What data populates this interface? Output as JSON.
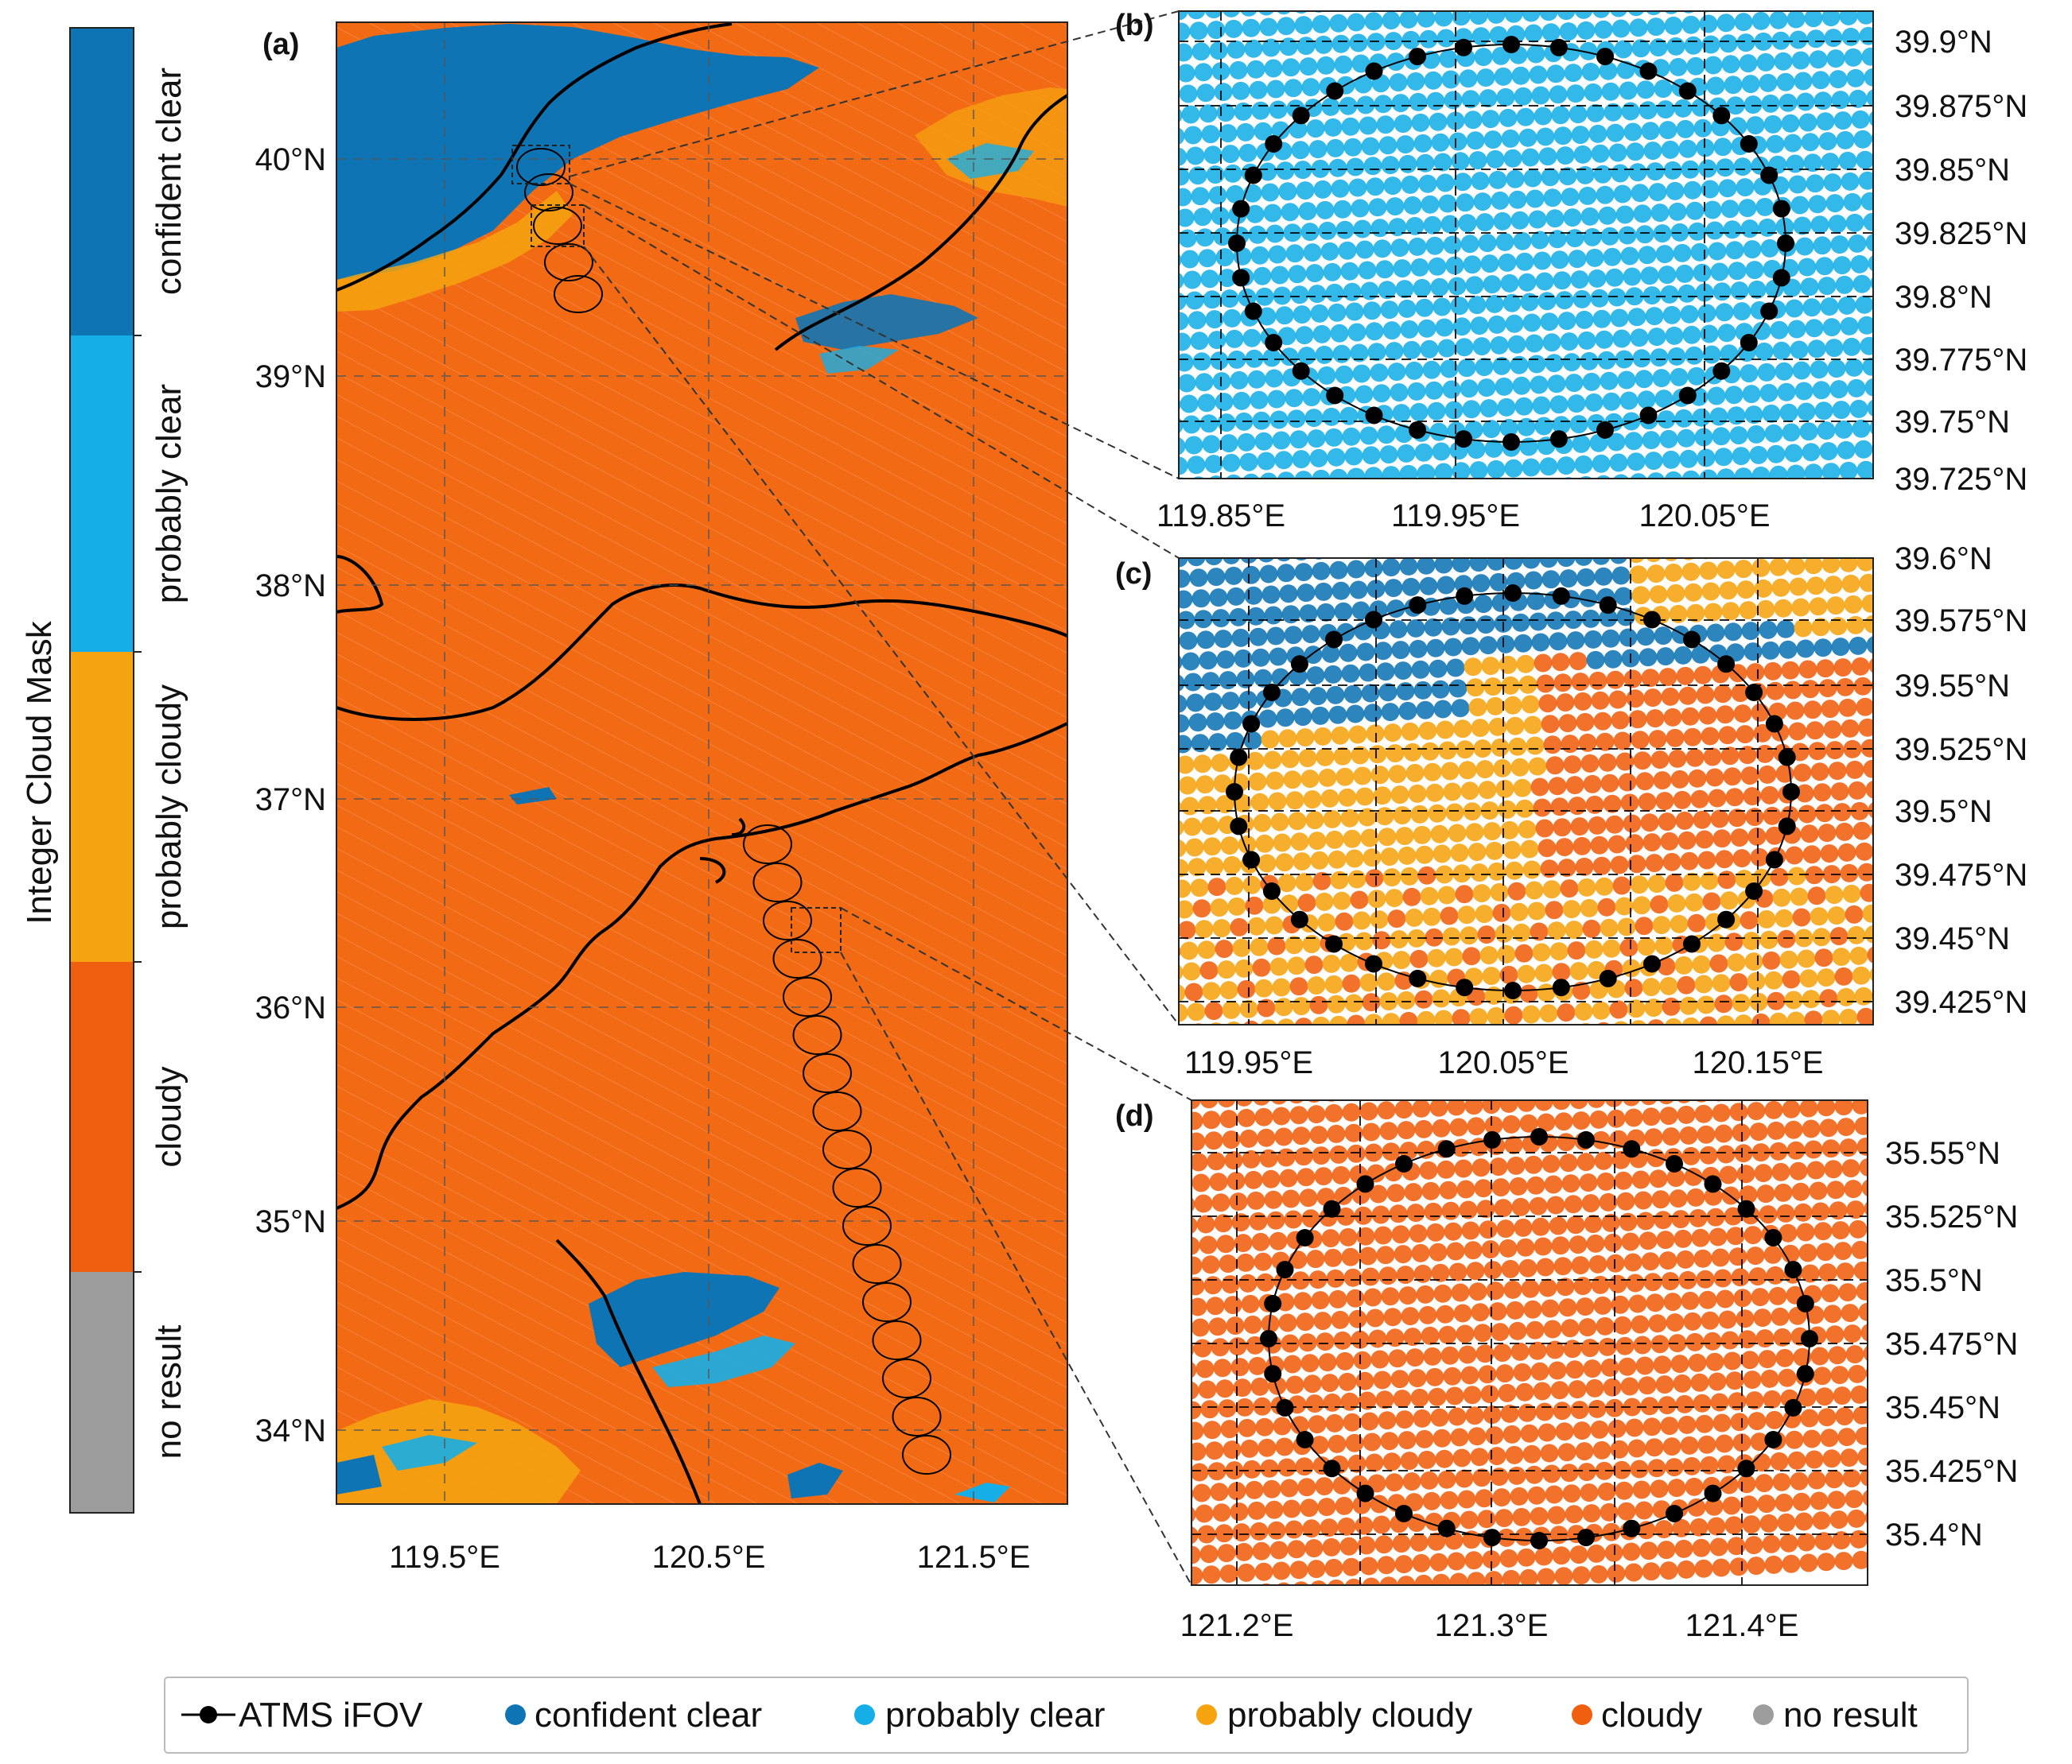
{
  "colors": {
    "confident_clear": "#0f74b4",
    "probably_clear": "#16aee6",
    "probably_cloudy": "#f5a30f",
    "cloudy": "#f05f0f",
    "no_result": "#9d9d9d",
    "atms": "#000000"
  },
  "colorbar": {
    "title": "Integer Cloud Mask",
    "labels": [
      "confident clear",
      "probably clear",
      "probably cloudy",
      "cloudy",
      "no result"
    ]
  },
  "panel_a": {
    "label": "(a)",
    "lat_ticks": [
      "40°N",
      "39°N",
      "38°N",
      "37°N",
      "36°N",
      "35°N",
      "34°N"
    ],
    "lon_ticks": [
      "119.5°E",
      "120.5°E",
      "121.5°E"
    ]
  },
  "panel_b": {
    "label": "(b)",
    "lat_ticks": [
      "39.9°N",
      "39.875°N",
      "39.85°N",
      "39.825°N",
      "39.8°N",
      "39.775°N",
      "39.75°N",
      "39.725°N"
    ],
    "lon_ticks": [
      "119.85°E",
      "119.95°E",
      "120.05°E"
    ]
  },
  "panel_c": {
    "label": "(c)",
    "lat_ticks": [
      "39.6°N",
      "39.575°N",
      "39.55°N",
      "39.525°N",
      "39.5°N",
      "39.475°N",
      "39.45°N",
      "39.425°N"
    ],
    "lon_ticks": [
      "119.95°E",
      "120.05°E",
      "120.15°E"
    ]
  },
  "panel_d": {
    "label": "(d)",
    "lat_ticks": [
      "35.55°N",
      "35.525°N",
      "35.5°N",
      "35.475°N",
      "35.45°N",
      "35.425°N",
      "35.4°N"
    ],
    "lon_ticks": [
      "121.2°E",
      "121.3°E",
      "121.4°E"
    ]
  },
  "legend": {
    "items": [
      "ATMS iFOV",
      "confident clear",
      "probably clear",
      "probably cloudy",
      "cloudy",
      "no result"
    ]
  }
}
